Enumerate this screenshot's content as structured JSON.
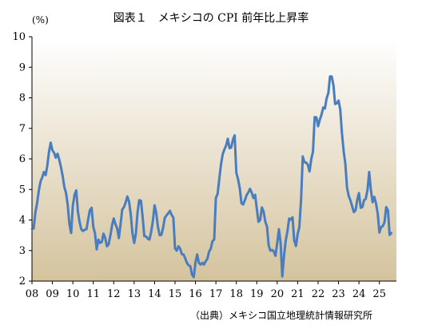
{
  "header": {
    "title": "図表１　メキシコの CPI 前年比上昇率",
    "unit": "(%)",
    "source": "（出典）メキシコ国立地理統計情報研究所"
  },
  "chart_data": {
    "type": "line",
    "title": "図表１　メキシコの CPI 前年比上昇率",
    "xlabel": "",
    "ylabel": "(%)",
    "ylim": [
      2,
      10
    ],
    "yticks": [
      2,
      3,
      4,
      5,
      6,
      7,
      8,
      9,
      10
    ],
    "xlim": [
      2008.0,
      2025.833
    ],
    "xtick_labels": [
      "08",
      "09",
      "10",
      "11",
      "12",
      "13",
      "14",
      "15",
      "16",
      "17",
      "18",
      "19",
      "20",
      "21",
      "22",
      "23",
      "24",
      "25"
    ],
    "grid": false,
    "legend": "none",
    "line_color": "#4a7dbe",
    "background_gradient": [
      "#ffffff",
      "#d4c39d"
    ],
    "series": [
      {
        "name": "",
        "x": [
          2008.0,
          2008.083,
          2008.167,
          2008.25,
          2008.333,
          2008.417,
          2008.5,
          2008.583,
          2008.667,
          2008.75,
          2008.833,
          2008.917,
          2009.0,
          2009.083,
          2009.167,
          2009.25,
          2009.333,
          2009.417,
          2009.5,
          2009.583,
          2009.667,
          2009.75,
          2009.833,
          2009.917,
          2010.0,
          2010.083,
          2010.167,
          2010.25,
          2010.333,
          2010.417,
          2010.5,
          2010.583,
          2010.667,
          2010.75,
          2010.833,
          2010.917,
          2011.0,
          2011.083,
          2011.167,
          2011.25,
          2011.333,
          2011.417,
          2011.5,
          2011.583,
          2011.667,
          2011.75,
          2011.833,
          2011.917,
          2012.0,
          2012.083,
          2012.167,
          2012.25,
          2012.333,
          2012.417,
          2012.5,
          2012.583,
          2012.667,
          2012.75,
          2012.833,
          2012.917,
          2013.0,
          2013.083,
          2013.167,
          2013.25,
          2013.333,
          2013.417,
          2013.5,
          2013.583,
          2013.667,
          2013.75,
          2013.833,
          2013.917,
          2014.0,
          2014.083,
          2014.167,
          2014.25,
          2014.333,
          2014.417,
          2014.5,
          2014.583,
          2014.667,
          2014.75,
          2014.833,
          2014.917,
          2015.0,
          2015.083,
          2015.167,
          2015.25,
          2015.333,
          2015.417,
          2015.5,
          2015.583,
          2015.667,
          2015.75,
          2015.833,
          2015.917,
          2016.0,
          2016.083,
          2016.167,
          2016.25,
          2016.333,
          2016.417,
          2016.5,
          2016.583,
          2016.667,
          2016.75,
          2016.833,
          2016.917,
          2017.0,
          2017.083,
          2017.167,
          2017.25,
          2017.333,
          2017.417,
          2017.5,
          2017.583,
          2017.667,
          2017.75,
          2017.833,
          2017.917,
          2018.0,
          2018.083,
          2018.167,
          2018.25,
          2018.333,
          2018.417,
          2018.5,
          2018.583,
          2018.667,
          2018.75,
          2018.833,
          2018.917,
          2019.0,
          2019.083,
          2019.167,
          2019.25,
          2019.333,
          2019.417,
          2019.5,
          2019.583,
          2019.667,
          2019.75,
          2019.833,
          2019.917,
          2020.0,
          2020.083,
          2020.167,
          2020.25,
          2020.333,
          2020.417,
          2020.5,
          2020.583,
          2020.667,
          2020.75,
          2020.833,
          2020.917,
          2021.0,
          2021.083,
          2021.167,
          2021.25,
          2021.333,
          2021.417,
          2021.5,
          2021.583,
          2021.667,
          2021.75,
          2021.833,
          2021.917,
          2022.0,
          2022.083,
          2022.167,
          2022.25,
          2022.333,
          2022.417,
          2022.5,
          2022.583,
          2022.667,
          2022.75,
          2022.833,
          2022.917,
          2023.0,
          2023.083,
          2023.167,
          2023.25,
          2023.333,
          2023.417,
          2023.5,
          2023.583,
          2023.667,
          2023.75,
          2023.833,
          2023.917,
          2024.0,
          2024.083,
          2024.167,
          2024.25,
          2024.333,
          2024.417,
          2024.5,
          2024.583,
          2024.667,
          2024.75,
          2024.833,
          2024.917,
          2025.0,
          2025.083,
          2025.167,
          2025.25,
          2025.333,
          2025.417,
          2025.5,
          2025.583
        ],
        "values": [
          3.7,
          3.72,
          4.25,
          4.55,
          4.95,
          5.26,
          5.39,
          5.57,
          5.47,
          5.78,
          6.23,
          6.53,
          6.28,
          6.2,
          6.04,
          6.17,
          5.98,
          5.74,
          5.44,
          5.08,
          4.89,
          4.5,
          3.86,
          3.57,
          4.46,
          4.83,
          4.97,
          4.27,
          3.92,
          3.69,
          3.64,
          3.68,
          3.7,
          4.02,
          4.32,
          4.4,
          3.78,
          3.57,
          3.04,
          3.36,
          3.25,
          3.28,
          3.55,
          3.42,
          3.14,
          3.2,
          3.48,
          3.82,
          4.05,
          3.87,
          3.73,
          3.41,
          3.85,
          4.34,
          4.42,
          4.57,
          4.77,
          4.6,
          4.18,
          3.57,
          3.25,
          3.55,
          4.25,
          4.65,
          4.63,
          4.09,
          3.47,
          3.46,
          3.39,
          3.36,
          3.62,
          3.97,
          4.48,
          4.23,
          3.76,
          3.5,
          3.51,
          3.75,
          4.07,
          4.15,
          4.22,
          4.3,
          4.17,
          4.08,
          3.07,
          3.0,
          3.14,
          3.06,
          2.88,
          2.87,
          2.74,
          2.59,
          2.52,
          2.48,
          2.21,
          2.13,
          2.61,
          2.87,
          2.6,
          2.54,
          2.6,
          2.54,
          2.65,
          2.73,
          2.97,
          3.06,
          3.31,
          3.36,
          4.72,
          4.86,
          5.35,
          5.82,
          6.16,
          6.31,
          6.44,
          6.66,
          6.35,
          6.37,
          6.63,
          6.77,
          5.55,
          5.34,
          5.04,
          4.55,
          4.51,
          4.65,
          4.81,
          4.9,
          5.02,
          4.9,
          4.72,
          4.83,
          4.37,
          3.94,
          4.0,
          4.41,
          4.28,
          3.95,
          3.78,
          3.16,
          3.0,
          3.02,
          2.97,
          2.83,
          3.24,
          3.7,
          3.25,
          2.15,
          2.84,
          3.33,
          3.62,
          4.05,
          4.01,
          4.09,
          3.33,
          3.15,
          3.54,
          3.76,
          4.67,
          6.08,
          5.89,
          5.88,
          5.81,
          5.59,
          6.0,
          6.24,
          7.37,
          7.36,
          7.07,
          7.28,
          7.45,
          7.68,
          7.65,
          7.99,
          8.15,
          8.7,
          8.7,
          8.41,
          7.8,
          7.82,
          7.91,
          7.62,
          6.85,
          6.25,
          5.84,
          5.06,
          4.79,
          4.64,
          4.45,
          4.26,
          4.32,
          4.66,
          4.88,
          4.4,
          4.42,
          4.65,
          4.69,
          4.98,
          5.57,
          4.99,
          4.58,
          4.76,
          4.55,
          4.21,
          3.59,
          3.77,
          3.8,
          3.93,
          4.42,
          4.32,
          3.51,
          3.57
        ]
      }
    ]
  }
}
